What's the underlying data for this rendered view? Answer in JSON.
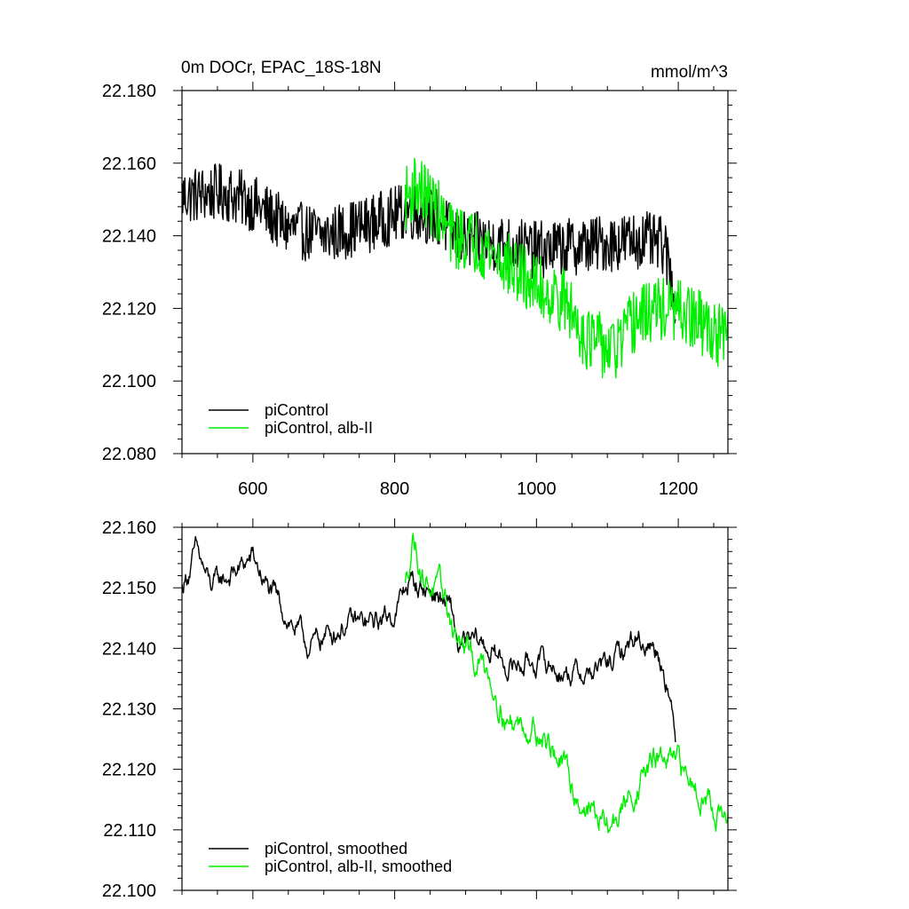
{
  "chart_data": [
    {
      "type": "line",
      "title": "0m DOCr, EPAC_18S-18N",
      "units": "mmol/m^3",
      "xlim": [
        500,
        1270
      ],
      "ylim": [
        22.08,
        22.18
      ],
      "x_ticks": [
        600,
        800,
        1000,
        1200
      ],
      "x_tick_labels": [
        "600",
        "800",
        "1000",
        "1200"
      ],
      "y_ticks": [
        22.08,
        22.1,
        22.12,
        22.14,
        22.16,
        22.18
      ],
      "y_tick_labels": [
        "22.080",
        "22.100",
        "22.120",
        "22.140",
        "22.160",
        "22.180"
      ],
      "legend_position": "bottom-left",
      "series": [
        {
          "name": "piControl",
          "color": "#000000",
          "x_range": [
            500,
            1196
          ],
          "trend": [
            [
              500,
              22.151
            ],
            [
              560,
              22.152
            ],
            [
              600,
              22.149
            ],
            [
              650,
              22.142
            ],
            [
              700,
              22.14
            ],
            [
              760,
              22.143
            ],
            [
              820,
              22.147
            ],
            [
              860,
              22.145
            ],
            [
              890,
              22.139
            ],
            [
              950,
              22.138
            ],
            [
              1000,
              22.136
            ],
            [
              1050,
              22.137
            ],
            [
              1100,
              22.138
            ],
            [
              1150,
              22.139
            ],
            [
              1180,
              22.137
            ],
            [
              1196,
              22.123
            ]
          ],
          "noise": 0.008
        },
        {
          "name": "piControl, alb-II",
          "color": "#00ee00",
          "x_range": [
            815,
            1270
          ],
          "trend": [
            [
              815,
              22.15
            ],
            [
              830,
              22.154
            ],
            [
              860,
              22.147
            ],
            [
              880,
              22.14
            ],
            [
              920,
              22.138
            ],
            [
              960,
              22.132
            ],
            [
              1000,
              22.126
            ],
            [
              1040,
              22.122
            ],
            [
              1070,
              22.112
            ],
            [
              1110,
              22.108
            ],
            [
              1140,
              22.117
            ],
            [
              1170,
              22.12
            ],
            [
              1200,
              22.119
            ],
            [
              1240,
              22.115
            ],
            [
              1270,
              22.111
            ]
          ],
          "noise": 0.009
        }
      ]
    },
    {
      "type": "line",
      "xlim": [
        500,
        1270
      ],
      "ylim": [
        22.1,
        22.16
      ],
      "x_ticks": [
        600,
        800,
        1000,
        1200
      ],
      "y_ticks": [
        22.1,
        22.11,
        22.12,
        22.13,
        22.14,
        22.15,
        22.16
      ],
      "y_tick_labels": [
        "22.100",
        "22.110",
        "22.120",
        "22.130",
        "22.140",
        "22.150",
        "22.160"
      ],
      "legend_position": "bottom-left",
      "series": [
        {
          "name": "piControl, smoothed",
          "color": "#000000",
          "x_range": [
            500,
            1196
          ],
          "trend": [
            [
              500,
              22.15
            ],
            [
              520,
              22.156
            ],
            [
              540,
              22.15
            ],
            [
              580,
              22.153
            ],
            [
              600,
              22.155
            ],
            [
              620,
              22.15
            ],
            [
              650,
              22.145
            ],
            [
              680,
              22.14
            ],
            [
              700,
              22.142
            ],
            [
              730,
              22.144
            ],
            [
              770,
              22.144
            ],
            [
              800,
              22.146
            ],
            [
              820,
              22.151
            ],
            [
              860,
              22.149
            ],
            [
              880,
              22.146
            ],
            [
              890,
              22.14
            ],
            [
              920,
              22.141
            ],
            [
              960,
              22.137
            ],
            [
              1000,
              22.138
            ],
            [
              1040,
              22.136
            ],
            [
              1080,
              22.136
            ],
            [
              1110,
              22.138
            ],
            [
              1140,
              22.142
            ],
            [
              1170,
              22.14
            ],
            [
              1185,
              22.135
            ],
            [
              1196,
              22.124
            ]
          ],
          "noise": 0.0025
        },
        {
          "name": "piControl, alb-II, smoothed",
          "color": "#00ee00",
          "x_range": [
            815,
            1270
          ],
          "trend": [
            [
              815,
              22.15
            ],
            [
              826,
              22.159
            ],
            [
              840,
              22.152
            ],
            [
              870,
              22.148
            ],
            [
              890,
              22.141
            ],
            [
              910,
              22.138
            ],
            [
              930,
              22.137
            ],
            [
              960,
              22.128
            ],
            [
              1000,
              22.127
            ],
            [
              1030,
              22.122
            ],
            [
              1060,
              22.115
            ],
            [
              1080,
              22.113
            ],
            [
              1100,
              22.11
            ],
            [
              1120,
              22.113
            ],
            [
              1150,
              22.119
            ],
            [
              1170,
              22.122
            ],
            [
              1200,
              22.12
            ],
            [
              1240,
              22.116
            ],
            [
              1270,
              22.111
            ]
          ],
          "noise": 0.003
        }
      ]
    }
  ]
}
